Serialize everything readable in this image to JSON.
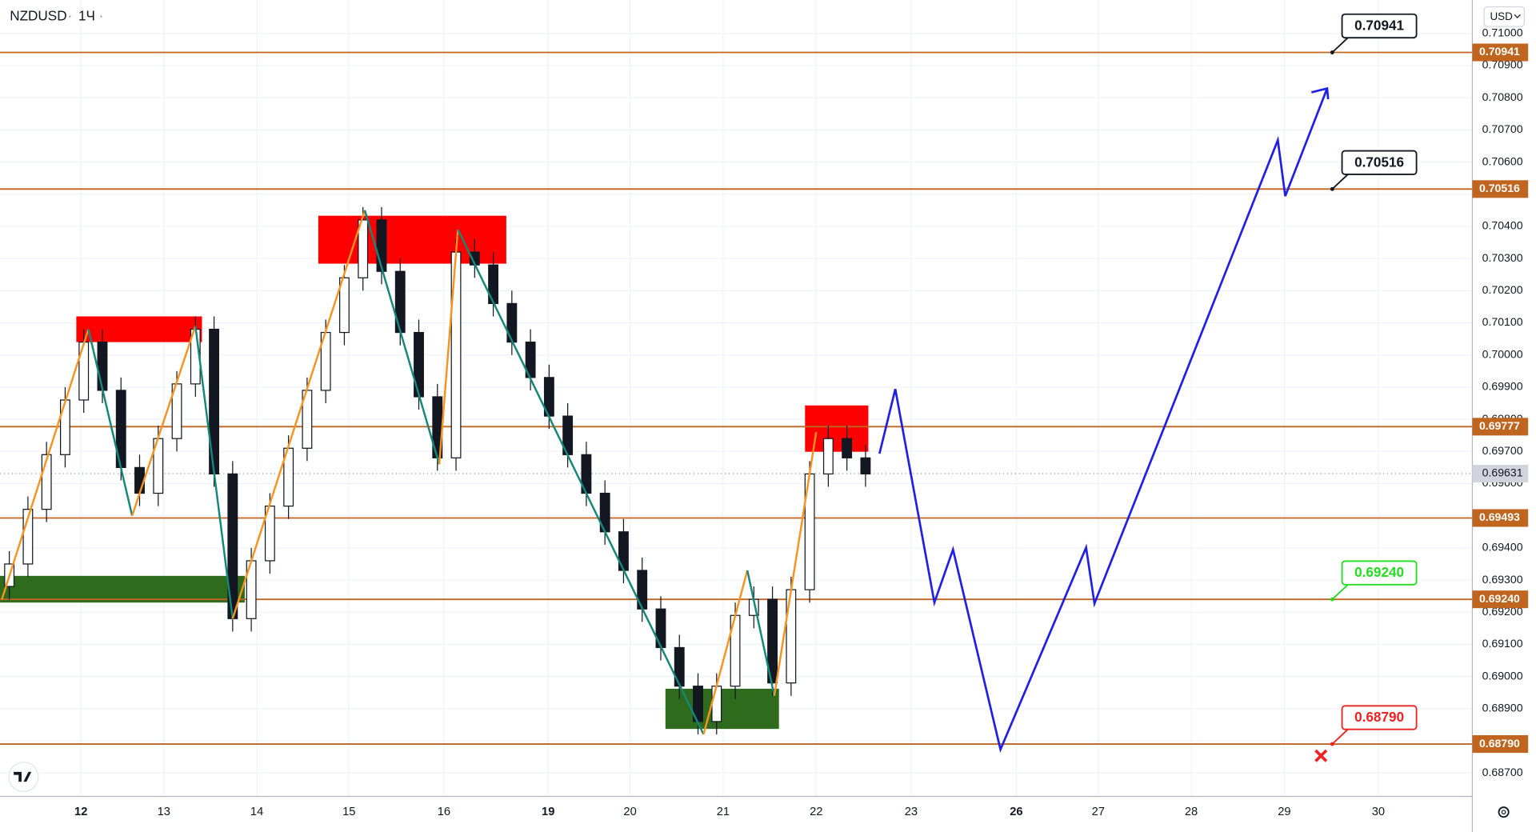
{
  "chart_data": {
    "type": "candlestick",
    "symbol": "NZDUSD",
    "interval": "1Ч",
    "currency": "USD",
    "xlim": [
      0,
      15.82
    ],
    "ylim": [
      0.68627,
      0.71104
    ],
    "xticks": [
      {
        "value": 0.87,
        "label": "12",
        "bold": true
      },
      {
        "value": 1.76,
        "label": "13"
      },
      {
        "value": 2.76,
        "label": "14"
      },
      {
        "value": 3.75,
        "label": "15"
      },
      {
        "value": 4.77,
        "label": "16"
      },
      {
        "value": 5.89,
        "label": "19",
        "bold": true
      },
      {
        "value": 6.77,
        "label": "20"
      },
      {
        "value": 7.77,
        "label": "21"
      },
      {
        "value": 8.77,
        "label": "22"
      },
      {
        "value": 9.79,
        "label": "23"
      },
      {
        "value": 10.92,
        "label": "26",
        "bold": true
      },
      {
        "value": 11.8,
        "label": "27"
      },
      {
        "value": 12.8,
        "label": "28"
      },
      {
        "value": 13.8,
        "label": "29"
      },
      {
        "value": 14.81,
        "label": "30"
      }
    ],
    "yticks": [
      {
        "value": 0.71,
        "label": "0.71000"
      },
      {
        "value": 0.709,
        "label": "0.70900"
      },
      {
        "value": 0.708,
        "label": "0.70800"
      },
      {
        "value": 0.707,
        "label": "0.70700"
      },
      {
        "value": 0.706,
        "label": "0.70600"
      },
      {
        "value": 0.705,
        "label": "0.70500"
      },
      {
        "value": 0.704,
        "label": "0.70400"
      },
      {
        "value": 0.703,
        "label": "0.70300"
      },
      {
        "value": 0.702,
        "label": "0.70200"
      },
      {
        "value": 0.701,
        "label": "0.70100"
      },
      {
        "value": 0.7,
        "label": "0.70000"
      },
      {
        "value": 0.699,
        "label": "0.69900"
      },
      {
        "value": 0.698,
        "label": "0.69800"
      },
      {
        "value": 0.697,
        "label": "0.69700"
      },
      {
        "value": 0.696,
        "label": "0.69600"
      },
      {
        "value": 0.695,
        "label": "0.69500"
      },
      {
        "value": 0.694,
        "label": "0.69400"
      },
      {
        "value": 0.693,
        "label": "0.69300"
      },
      {
        "value": 0.692,
        "label": "0.69200"
      },
      {
        "value": 0.691,
        "label": "0.69100"
      },
      {
        "value": 0.69,
        "label": "0.69000"
      },
      {
        "value": 0.689,
        "label": "0.68900"
      },
      {
        "value": 0.688,
        "label": "0.68800"
      },
      {
        "value": 0.687,
        "label": "0.68700"
      }
    ],
    "x": [
      0.1,
      0.3,
      0.5,
      0.7,
      0.9,
      1.1,
      1.3,
      1.5,
      1.7,
      1.9,
      2.1,
      2.3,
      2.5,
      2.7,
      2.9,
      3.1,
      3.3,
      3.5,
      3.7,
      3.9,
      4.1,
      4.3,
      4.5,
      4.7,
      4.9,
      5.1,
      5.3,
      5.5,
      5.7,
      5.9,
      6.1,
      6.3,
      6.5,
      6.7,
      6.9,
      7.1,
      7.3,
      7.5,
      7.7,
      7.9,
      8.1,
      8.3,
      8.5,
      8.7,
      8.9,
      9.1,
      9.3
    ],
    "open": [
      0.6928,
      0.6935,
      0.6952,
      0.6969,
      0.6986,
      0.7004,
      0.6989,
      0.6965,
      0.6957,
      0.6974,
      0.6991,
      0.7008,
      0.6963,
      0.6918,
      0.6936,
      0.6953,
      0.6971,
      0.6989,
      0.7007,
      0.7024,
      0.7042,
      0.7026,
      0.7007,
      0.6987,
      0.6968,
      0.7032,
      0.7028,
      0.7016,
      0.7004,
      0.6993,
      0.6981,
      0.6969,
      0.6957,
      0.6945,
      0.6933,
      0.6921,
      0.6909,
      0.6897,
      0.6886,
      0.6897,
      0.6919,
      0.6924,
      0.6898,
      0.6927,
      0.6963,
      0.6974,
      0.6968
    ],
    "high": [
      0.6939,
      0.6956,
      0.6973,
      0.699,
      0.7008,
      0.7008,
      0.6993,
      0.6969,
      0.6978,
      0.6995,
      0.7012,
      0.7012,
      0.6967,
      0.694,
      0.6957,
      0.6975,
      0.6993,
      0.7011,
      0.7028,
      0.7046,
      0.7046,
      0.703,
      0.7011,
      0.6991,
      0.7036,
      0.7036,
      0.7032,
      0.702,
      0.7008,
      0.6997,
      0.6985,
      0.6973,
      0.6961,
      0.6949,
      0.6937,
      0.6925,
      0.6913,
      0.6901,
      0.6901,
      0.6923,
      0.6928,
      0.6928,
      0.6931,
      0.6967,
      0.6978,
      0.6978,
      0.6972
    ],
    "low": [
      0.6924,
      0.6931,
      0.6948,
      0.6965,
      0.6982,
      0.6985,
      0.6961,
      0.6953,
      0.6953,
      0.697,
      0.6987,
      0.6959,
      0.6914,
      0.6914,
      0.6932,
      0.6949,
      0.6967,
      0.6985,
      0.7003,
      0.702,
      0.7022,
      0.7003,
      0.6983,
      0.6964,
      0.6964,
      0.7024,
      0.7012,
      0.7,
      0.6989,
      0.6977,
      0.6965,
      0.6953,
      0.6941,
      0.6929,
      0.6917,
      0.6905,
      0.6893,
      0.6882,
      0.6882,
      0.6893,
      0.6915,
      0.6894,
      0.6894,
      0.6923,
      0.6959,
      0.6964,
      0.6959
    ],
    "close": [
      0.6935,
      0.6952,
      0.6969,
      0.6986,
      0.7004,
      0.6989,
      0.6965,
      0.6957,
      0.6974,
      0.6991,
      0.7008,
      0.6963,
      0.6918,
      0.6936,
      0.6953,
      0.6971,
      0.6989,
      0.7007,
      0.7024,
      0.7042,
      0.7026,
      0.7007,
      0.6987,
      0.6968,
      0.7032,
      0.7028,
      0.7016,
      0.7004,
      0.6993,
      0.6981,
      0.6969,
      0.6957,
      0.6945,
      0.6933,
      0.6921,
      0.6909,
      0.6897,
      0.6886,
      0.6897,
      0.6919,
      0.6924,
      0.6898,
      0.6927,
      0.6963,
      0.6974,
      0.6968,
      0.6963
    ],
    "up_color": "#ffffff",
    "down_color": "#131722",
    "current_price": {
      "value": 0.69631,
      "label": "0.69631"
    },
    "levels": [
      {
        "value": 0.70941,
        "label": "0.70941",
        "callout": "#131722"
      },
      {
        "value": 0.70516,
        "label": "0.70516",
        "callout": "#131722"
      },
      {
        "value": 0.69777,
        "label": "0.69777"
      },
      {
        "value": 0.69493,
        "label": "0.69493"
      },
      {
        "value": 0.6924,
        "label": "0.69240",
        "callout": "#22dd22"
      },
      {
        "value": 0.6879,
        "label": "0.68790",
        "callout": "#ee2222"
      }
    ],
    "level_color": "#c0651f",
    "zones": [
      {
        "x": [
          0.82,
          2.17
        ],
        "y": [
          0.7004,
          0.7012
        ],
        "color": "#ff0000"
      },
      {
        "x": [
          3.42,
          5.44
        ],
        "y": [
          0.70284,
          0.70433
        ],
        "color": "#ff0000"
      },
      {
        "x": [
          8.65,
          9.33
        ],
        "y": [
          0.69699,
          0.69843
        ],
        "color": "#ff0000"
      },
      {
        "x": [
          0,
          2.63
        ],
        "y": [
          0.6923,
          0.69313
        ],
        "color": "#2e6b1c"
      },
      {
        "x": [
          7.15,
          8.37
        ],
        "y": [
          0.68837,
          0.68962
        ],
        "color": "#2e6b1c"
      }
    ],
    "zigzag": {
      "x": [
        0.02,
        0.95,
        1.42,
        2.1,
        2.5,
        3.92,
        4.72,
        4.92,
        7.56,
        8.03,
        8.32,
        8.77
      ],
      "values": [
        0.6924,
        0.7008,
        0.695,
        0.7009,
        0.6918,
        0.7045,
        0.6966,
        0.7039,
        0.6882,
        0.6933,
        0.6894,
        0.6976
      ],
      "up_color": "#f7931e",
      "down_color": "#13877a"
    },
    "projection": {
      "x": [
        9.45,
        9.62,
        10.04,
        10.24,
        10.75,
        11.67,
        11.76,
        13.73,
        13.81,
        14.26
      ],
      "values": [
        0.69693,
        0.69894,
        0.6923,
        0.69395,
        0.68773,
        0.69401,
        0.69227,
        0.70668,
        0.70494,
        0.70829
      ],
      "color": "#1f1fe6"
    }
  }
}
